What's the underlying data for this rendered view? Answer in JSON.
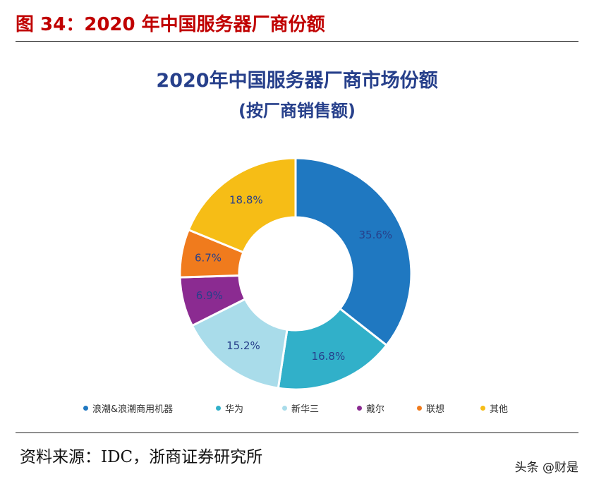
{
  "figure": {
    "title": "图 34：2020 年中国服务器厂商份额"
  },
  "source_note": "资料来源：IDC，浙商证券研究所",
  "watermark": "头条 @财是",
  "chart_data": {
    "type": "pie",
    "subtype": "donut",
    "title": "2020年中国服务器厂商市场份额",
    "subtitle": "(按厂商销售额)",
    "legend_position": "bottom",
    "slices": [
      {
        "label": "浪潮&浪潮商用机器",
        "value": 35.6,
        "display": "35.6%",
        "color": "#1f78c1"
      },
      {
        "label": "华为",
        "value": 16.8,
        "display": "16.8%",
        "color": "#31b0c9"
      },
      {
        "label": "新华三",
        "value": 15.2,
        "display": "15.2%",
        "color": "#a9dcea"
      },
      {
        "label": "戴尔",
        "value": 6.9,
        "display": "6.9%",
        "color": "#8b2b91"
      },
      {
        "label": "联想",
        "value": 6.7,
        "display": "6.7%",
        "color": "#f07b1d"
      },
      {
        "label": "其他",
        "value": 18.8,
        "display": "18.8%",
        "color": "#f6bd16"
      }
    ]
  }
}
